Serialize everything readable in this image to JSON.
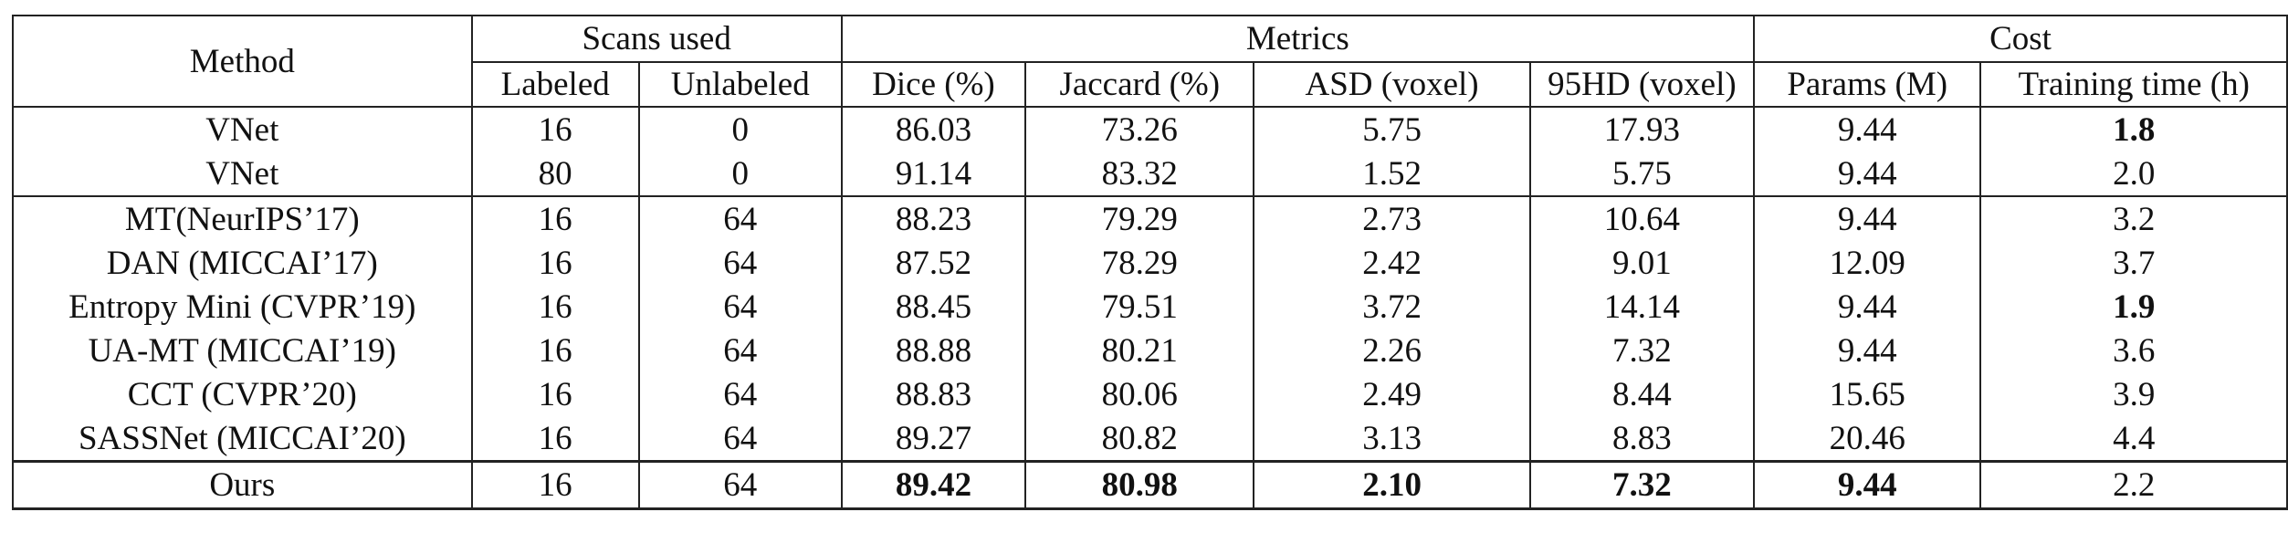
{
  "table": {
    "group_headers": [
      {
        "label": "Method",
        "span": 1
      },
      {
        "label": "Scans used",
        "span": 2
      },
      {
        "label": "Metrics",
        "span": 4
      },
      {
        "label": "Cost",
        "span": 2
      }
    ],
    "column_headers": [
      "Labeled",
      "Unlabeled",
      "Dice (%)",
      "Jaccard (%)",
      "ASD (voxel)",
      "95HD (voxel)",
      "Params (M)",
      "Training time (h)"
    ],
    "rows": [
      [
        "VNet",
        "16",
        "0",
        "86.03",
        "73.26",
        "5.75",
        "17.93",
        "9.44",
        "1.8"
      ],
      [
        "VNet",
        "80",
        "0",
        "91.14",
        "83.32",
        "1.52",
        "5.75",
        "9.44",
        "2.0"
      ],
      [
        "MT(NeurIPS’17)",
        "16",
        "64",
        "88.23",
        "79.29",
        "2.73",
        "10.64",
        "9.44",
        "3.2"
      ],
      [
        "DAN (MICCAI’17)",
        "16",
        "64",
        "87.52",
        "78.29",
        "2.42",
        "9.01",
        "12.09",
        "3.7"
      ],
      [
        "Entropy Mini (CVPR’19)",
        "16",
        "64",
        "88.45",
        "79.51",
        "3.72",
        "14.14",
        "9.44",
        "1.9"
      ],
      [
        "UA-MT (MICCAI’19)",
        "16",
        "64",
        "88.88",
        "80.21",
        "2.26",
        "7.32",
        "9.44",
        "3.6"
      ],
      [
        "CCT (CVPR’20)",
        "16",
        "64",
        "88.83",
        "80.06",
        "2.49",
        "8.44",
        "15.65",
        "3.9"
      ],
      [
        "SASSNet (MICCAI’20)",
        "16",
        "64",
        "89.27",
        "80.82",
        "3.13",
        "8.83",
        "20.46",
        "4.4"
      ],
      [
        "Ours",
        "16",
        "64",
        "89.42",
        "80.98",
        "2.10",
        "7.32",
        "9.44",
        "2.2"
      ]
    ],
    "bold_cells": [
      [
        0,
        8
      ],
      [
        4,
        8
      ],
      [
        8,
        3
      ],
      [
        8,
        4
      ],
      [
        8,
        5
      ],
      [
        8,
        6
      ],
      [
        8,
        7
      ]
    ],
    "separator_after_rows": [
      1,
      7
    ]
  }
}
